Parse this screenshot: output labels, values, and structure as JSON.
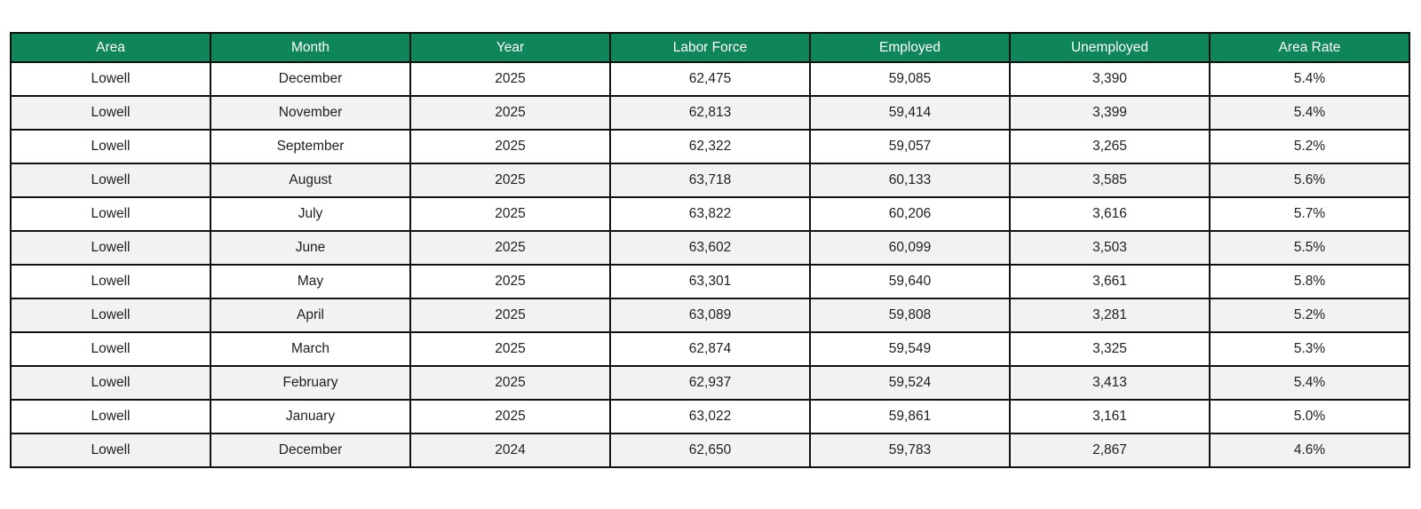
{
  "chart_data": {
    "type": "table",
    "title": "",
    "columns": [
      "Area",
      "Month",
      "Year",
      "Labor Force",
      "Employed",
      "Unemployed",
      "Area Rate"
    ],
    "rows": [
      [
        "Lowell",
        "December",
        "2025",
        "62,475",
        "59,085",
        "3,390",
        "5.4%"
      ],
      [
        "Lowell",
        "November",
        "2025",
        "62,813",
        "59,414",
        "3,399",
        "5.4%"
      ],
      [
        "Lowell",
        "September",
        "2025",
        "62,322",
        "59,057",
        "3,265",
        "5.2%"
      ],
      [
        "Lowell",
        "August",
        "2025",
        "63,718",
        "60,133",
        "3,585",
        "5.6%"
      ],
      [
        "Lowell",
        "July",
        "2025",
        "63,822",
        "60,206",
        "3,616",
        "5.7%"
      ],
      [
        "Lowell",
        "June",
        "2025",
        "63,602",
        "60,099",
        "3,503",
        "5.5%"
      ],
      [
        "Lowell",
        "May",
        "2025",
        "63,301",
        "59,640",
        "3,661",
        "5.8%"
      ],
      [
        "Lowell",
        "April",
        "2025",
        "63,089",
        "59,808",
        "3,281",
        "5.2%"
      ],
      [
        "Lowell",
        "March",
        "2025",
        "62,874",
        "59,549",
        "3,325",
        "5.3%"
      ],
      [
        "Lowell",
        "February",
        "2025",
        "62,937",
        "59,524",
        "3,413",
        "5.4%"
      ],
      [
        "Lowell",
        "January",
        "2025",
        "63,022",
        "59,861",
        "3,161",
        "5.0%"
      ],
      [
        "Lowell",
        "December",
        "2024",
        "62,650",
        "59,783",
        "2,867",
        "4.6%"
      ]
    ],
    "layout": {
      "header_position": "top",
      "zebra_striping": true,
      "grid": true
    },
    "colors": {
      "header_bg": "#0E8659",
      "header_text": "#ffffff",
      "row_bg": "#ffffff",
      "row_alt_bg": "#f2f2f2",
      "border": "#111111",
      "cell_text": "#202020"
    }
  }
}
